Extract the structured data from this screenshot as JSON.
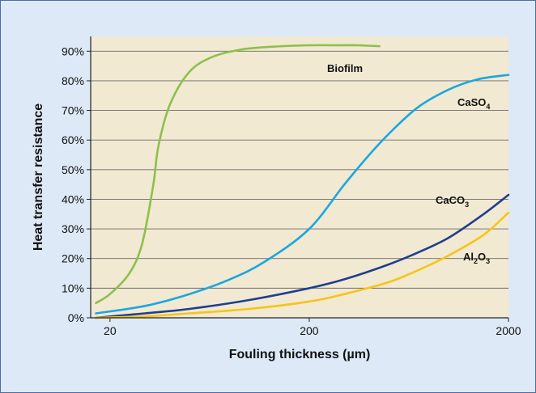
{
  "chart_data": {
    "type": "line",
    "xlabel": "Fouling thickness (µm)",
    "ylabel": "Heat transfer resistance",
    "x_scale": "log",
    "xlim": [
      16,
      2000
    ],
    "ylim": [
      0,
      95
    ],
    "x_ticks": [
      20,
      200,
      2000
    ],
    "x_tick_labels": [
      "20",
      "200",
      "2000"
    ],
    "y_ticks": [
      0,
      10,
      20,
      30,
      40,
      50,
      60,
      70,
      80,
      90
    ],
    "y_tick_labels": [
      "0%",
      "10%",
      "20%",
      "30%",
      "40%",
      "50%",
      "60%",
      "70%",
      "80%",
      "90%"
    ],
    "grid": true,
    "colors": {
      "plot_background": "#f2e9d2",
      "frame_background": "#dde9f6",
      "border": "#4a6fa5"
    },
    "series": [
      {
        "name": "Biofilm",
        "color": "#8cc04b",
        "x": [
          17,
          20,
          25,
          29,
          33,
          35,
          40,
          50,
          65,
          90,
          130,
          200,
          280,
          350,
          450
        ],
        "y": [
          5,
          8,
          15,
          25,
          45,
          58,
          72,
          83,
          88,
          90.5,
          91.5,
          92,
          92,
          92,
          91.7
        ]
      },
      {
        "name": "CaSO",
        "name_sub": "4",
        "color": "#1aa7e0",
        "x": [
          17,
          30,
          50,
          80,
          120,
          200,
          300,
          400,
          500,
          700,
          1000,
          1400,
          2000
        ],
        "y": [
          1.5,
          4,
          8,
          13,
          19,
          30,
          45,
          55,
          62,
          71,
          77,
          80.5,
          82
        ]
      },
      {
        "name": "CaCO",
        "name_sub": "3",
        "color": "#1d3f8f",
        "x": [
          17,
          30,
          50,
          100,
          200,
          300,
          500,
          700,
          1000,
          1500,
          2000
        ],
        "y": [
          0,
          1.5,
          3,
          6,
          10,
          13,
          18,
          22,
          27,
          35,
          41.5
        ]
      },
      {
        "name": "Al",
        "name_sub": "2",
        "name_mid": "O",
        "name_sub2": "3",
        "color": "#f5c518",
        "x": [
          17,
          30,
          50,
          100,
          200,
          300,
          500,
          700,
          1000,
          1500,
          2000
        ],
        "y": [
          0,
          0.5,
          1.5,
          3,
          5.5,
          8,
          12,
          16,
          21,
          28,
          35.5
        ]
      }
    ]
  }
}
